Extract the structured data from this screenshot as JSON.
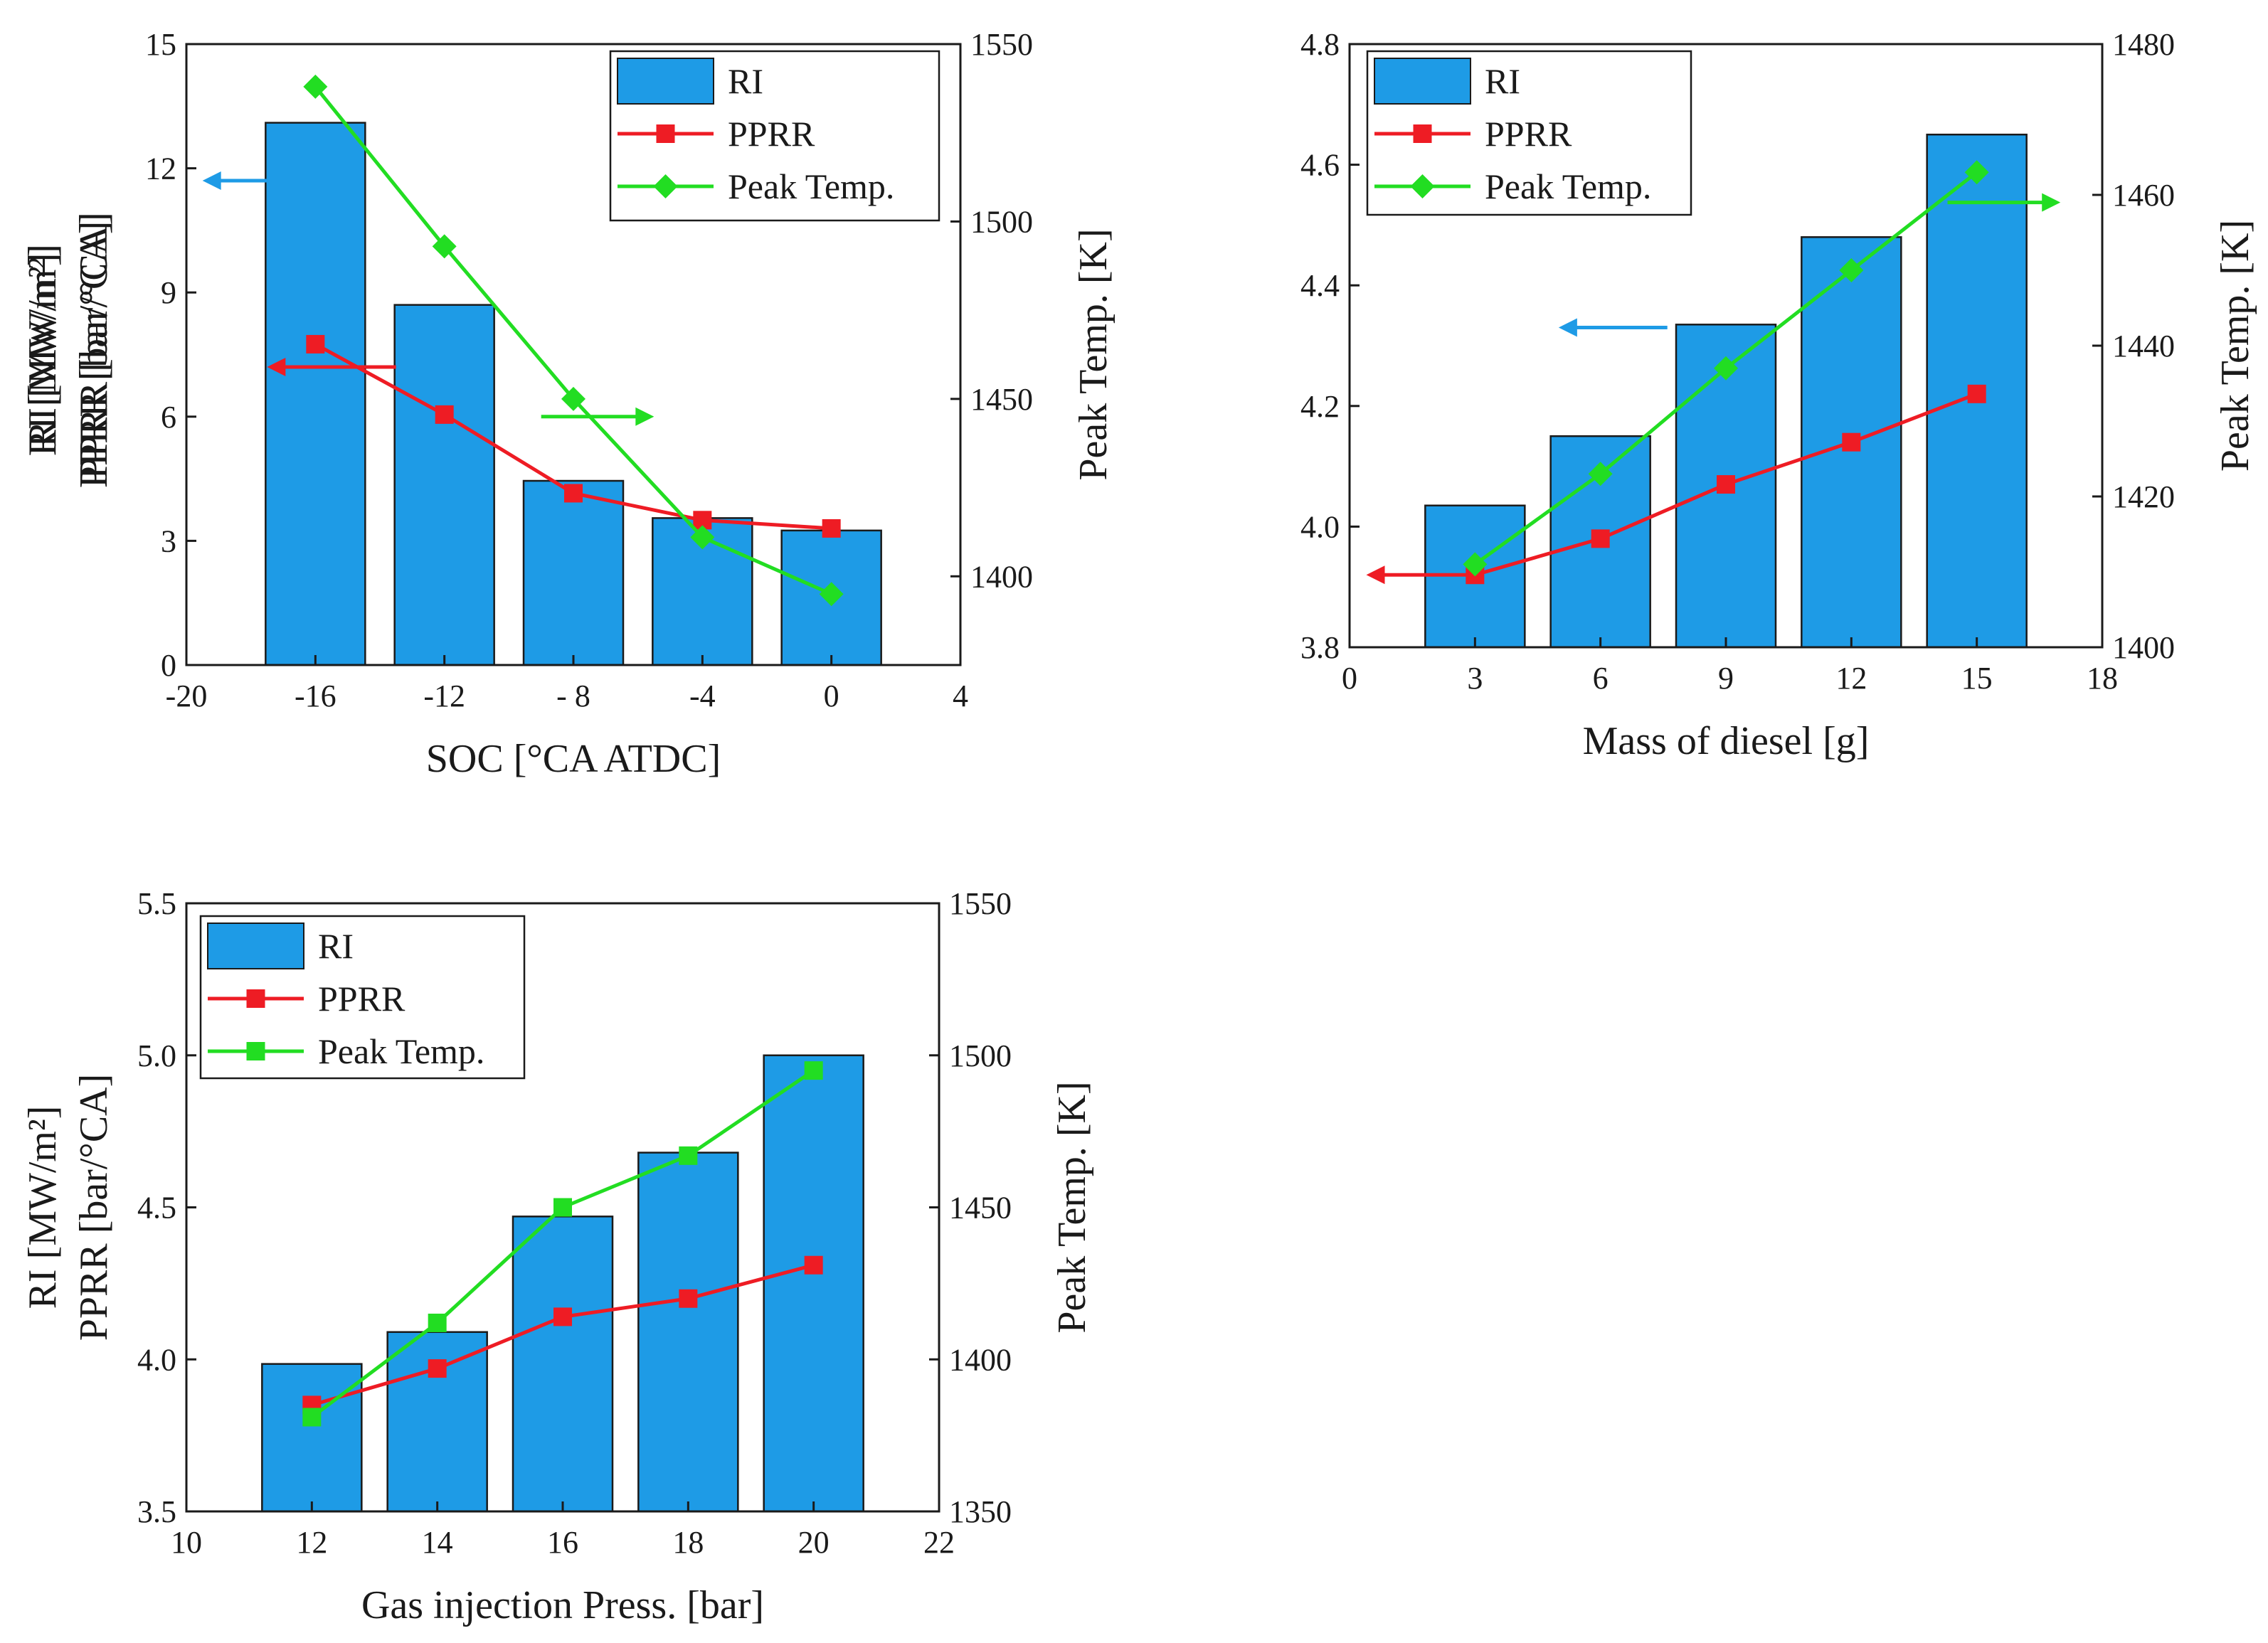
{
  "chart_data": [
    {
      "type": "bar",
      "id": "soc",
      "title": "",
      "xlabel": "SOC [°CA ATDC]",
      "ylabel_lines": [
        "RI [MW/m²]",
        "PPRR [bar/°CA]"
      ],
      "y2label": "Peak Temp. [K]",
      "xlim": [
        -20,
        4
      ],
      "xticks": [
        -20,
        -16,
        -12,
        -8,
        -4,
        0,
        4
      ],
      "xtick_labels": [
        "-20",
        "-16",
        "-12",
        "- 8",
        "-4",
        "0",
        "4"
      ],
      "ylim": [
        0,
        15
      ],
      "yticks": [
        0,
        3,
        6,
        9,
        12,
        15
      ],
      "y2lim": [
        1375,
        1550
      ],
      "y2ticks": [
        1400,
        1450,
        1500,
        1550
      ],
      "categories": [
        -16,
        -12,
        -8,
        -4,
        0
      ],
      "series": [
        {
          "name": "RI",
          "kind": "bar",
          "axis": "left",
          "values": [
            13.1,
            8.7,
            4.45,
            3.55,
            3.25
          ]
        },
        {
          "name": "PPRR",
          "kind": "line",
          "marker": "square",
          "axis": "left",
          "values": [
            7.75,
            6.05,
            4.15,
            3.5,
            3.3
          ]
        },
        {
          "name": "Peak Temp.",
          "kind": "line",
          "marker": "diamond",
          "axis": "right",
          "values": [
            1538,
            1493,
            1450,
            1411,
            1395
          ]
        }
      ],
      "legend_position": "top-right",
      "annotations": [
        {
          "type": "arrow",
          "direction": "left",
          "series": "RI",
          "color": "#1e9be6",
          "x_from": -17.5,
          "x_to": -19.5,
          "y": 11.7,
          "axis": "left"
        },
        {
          "type": "arrow",
          "direction": "left",
          "series": "PPRR",
          "color": "#ee1c24",
          "x_from": -13.5,
          "x_to": -17.5,
          "y": 7.2,
          "axis": "left"
        },
        {
          "type": "arrow",
          "direction": "right",
          "series": "Peak Temp.",
          "color": "#22dd22",
          "x_from": -9.0,
          "x_to": -5.5,
          "y": 1445,
          "axis": "right"
        }
      ]
    },
    {
      "type": "bar",
      "id": "diesel",
      "title": "",
      "xlabel": "Mass of diesel [g]",
      "ylabel_lines": [
        "RI [MW/m²]",
        "PPRR [bar/°CA]"
      ],
      "y2label": "Peak Temp. [K]",
      "xlim": [
        0,
        18
      ],
      "xticks": [
        0,
        3,
        6,
        9,
        12,
        15,
        18
      ],
      "xtick_labels": [
        "0",
        "3",
        "6",
        "9",
        "12",
        "15",
        "18"
      ],
      "ylim": [
        3.8,
        4.8
      ],
      "yticks": [
        3.8,
        4.0,
        4.2,
        4.4,
        4.6,
        4.8
      ],
      "y2lim": [
        1400,
        1480
      ],
      "y2ticks": [
        1400,
        1420,
        1440,
        1460,
        1480
      ],
      "categories": [
        3,
        6,
        9,
        12,
        15
      ],
      "series": [
        {
          "name": "RI",
          "kind": "bar",
          "axis": "left",
          "values": [
            4.035,
            4.15,
            4.335,
            4.48,
            4.65
          ]
        },
        {
          "name": "PPRR",
          "kind": "line",
          "marker": "square",
          "axis": "left",
          "values": [
            3.92,
            3.98,
            4.07,
            4.14,
            4.22
          ]
        },
        {
          "name": "Peak Temp.",
          "kind": "line",
          "marker": "diamond",
          "axis": "right",
          "values": [
            1411,
            1423,
            1437,
            1450,
            1463
          ]
        }
      ],
      "legend_position": "top-left",
      "annotations": [
        {
          "type": "arrow",
          "direction": "left",
          "series": "PPRR",
          "color": "#ee1c24",
          "x_from": 2.8,
          "x_to": 0.4,
          "y": 3.92,
          "axis": "left"
        },
        {
          "type": "arrow",
          "direction": "left",
          "series": "RI",
          "color": "#1e9be6",
          "x_from": 7.6,
          "x_to": 5.0,
          "y": 4.33,
          "axis": "left"
        },
        {
          "type": "arrow",
          "direction": "right",
          "series": "Peak Temp.",
          "color": "#22dd22",
          "x_from": 14.3,
          "x_to": 17.0,
          "y": 1459,
          "axis": "right"
        }
      ]
    },
    {
      "type": "bar",
      "id": "gas",
      "title": "",
      "xlabel": "Gas injection Press. [bar]",
      "ylabel_lines": [
        "RI [MW/m²]",
        "PPRR [bar/°CA]"
      ],
      "y2label": "Peak Temp. [K]",
      "xlim": [
        10,
        22
      ],
      "xticks": [
        10,
        12,
        14,
        16,
        18,
        20,
        22
      ],
      "xtick_labels": [
        "10",
        "12",
        "14",
        "16",
        "18",
        "20",
        "22"
      ],
      "ylim": [
        3.5,
        5.5
      ],
      "yticks": [
        3.5,
        4.0,
        4.5,
        5.0,
        5.5
      ],
      "y2lim": [
        1350,
        1550
      ],
      "y2ticks": [
        1350,
        1400,
        1450,
        1500,
        1550
      ],
      "categories": [
        12,
        14,
        16,
        18,
        20
      ],
      "series": [
        {
          "name": "RI",
          "kind": "bar",
          "axis": "left",
          "values": [
            3.985,
            4.09,
            4.47,
            4.68,
            5.0
          ]
        },
        {
          "name": "PPRR",
          "kind": "line",
          "marker": "square",
          "axis": "left",
          "values": [
            3.85,
            3.97,
            4.14,
            4.2,
            4.31
          ]
        },
        {
          "name": "Peak Temp.",
          "kind": "line",
          "marker": "square",
          "axis": "right",
          "values": [
            1381,
            1412,
            1450,
            1467,
            1495
          ]
        }
      ],
      "legend_position": "top-left",
      "annotations": []
    }
  ],
  "colors": {
    "bar_fill": "#1e9be6",
    "pprr_line": "#ee1c24",
    "temp_line": "#22dd22",
    "axis": "#1a1a1a"
  }
}
